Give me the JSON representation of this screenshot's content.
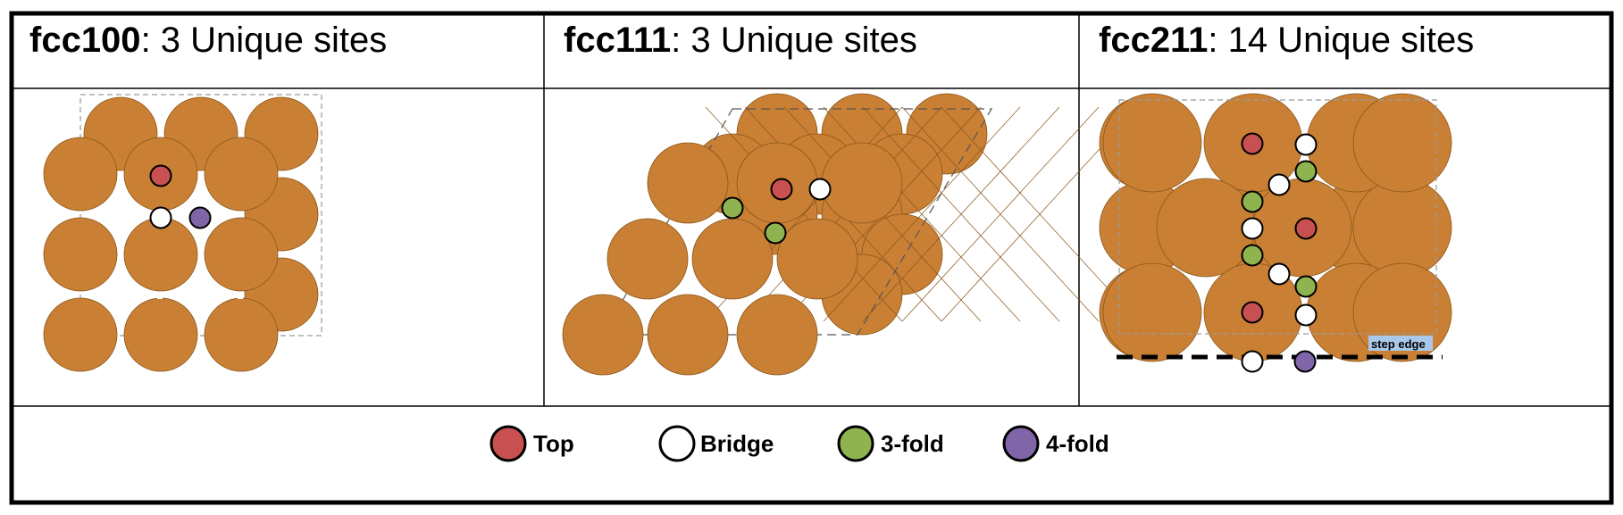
{
  "colors": {
    "atom": "#c98035",
    "atom_edge": "#8a5518",
    "top": "#c95050",
    "bridge": "#ffffff",
    "threefold": "#8fb44f",
    "fourfold": "#8066a8",
    "border": "#000000",
    "cell_line": "#9a9a9a",
    "step_label_bg": "#a9c8ea"
  },
  "panels": [
    {
      "name": "fcc100",
      "suffix": ": 3 Unique sites"
    },
    {
      "name": "fcc111",
      "suffix": ": 3 Unique sites"
    },
    {
      "name": "fcc211",
      "suffix": ": 14 Unique sites"
    }
  ],
  "step_edge_label": "step edge",
  "legend": [
    {
      "label": "Top",
      "color_key": "top"
    },
    {
      "label": "Bridge",
      "color_key": "bridge"
    },
    {
      "label": "3-fold",
      "color_key": "threefold"
    },
    {
      "label": "4-fold",
      "color_key": "fourfold"
    }
  ]
}
